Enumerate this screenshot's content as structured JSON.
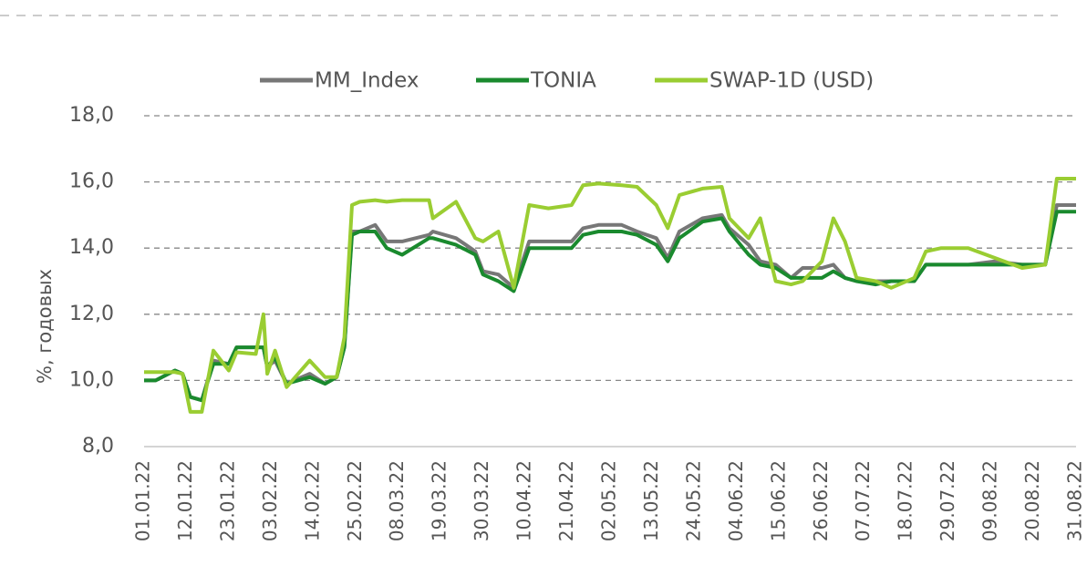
{
  "chart_data": {
    "type": "line",
    "y_label": "%, годовых",
    "x": [
      "01.01.22",
      "04.01.22",
      "09.01.22",
      "11.01.22",
      "13.01.22",
      "16.01.22",
      "19.01.22",
      "23.01.22",
      "25.01.22",
      "30.01.22",
      "01.02.22",
      "02.02.22",
      "04.02.22",
      "07.02.22",
      "13.02.22",
      "17.02.22",
      "20.02.22",
      "22.02.22",
      "24.02.22",
      "26.02.22",
      "02.03.22",
      "05.03.22",
      "09.03.22",
      "16.03.22",
      "17.03.22",
      "23.03.22",
      "28.03.22",
      "30.03.22",
      "03.04.22",
      "07.04.22",
      "11.04.22",
      "16.04.22",
      "22.04.22",
      "25.04.22",
      "29.04.22",
      "05.05.22",
      "09.05.22",
      "14.05.22",
      "17.05.22",
      "20.05.22",
      "26.05.22",
      "31.05.22",
      "02.06.22",
      "07.06.22",
      "10.06.22",
      "14.06.22",
      "18.06.22",
      "21.06.22",
      "26.06.22",
      "29.06.22",
      "02.07.22",
      "05.07.22",
      "10.07.22",
      "14.07.22",
      "20.07.22",
      "23.07.22",
      "27.07.22",
      "03.08.22",
      "10.08.22",
      "17.08.22",
      "23.08.22",
      "26.08.22",
      "31.08.22"
    ],
    "series": [
      {
        "name": "MM_Index",
        "color": "#777777",
        "values": [
          10.0,
          10.0,
          10.3,
          10.2,
          9.5,
          9.4,
          10.6,
          10.5,
          11.0,
          11.0,
          11.0,
          10.4,
          10.6,
          9.9,
          10.2,
          9.9,
          10.1,
          11.0,
          14.5,
          14.5,
          14.7,
          14.2,
          14.2,
          14.4,
          14.5,
          14.3,
          13.9,
          13.3,
          13.2,
          12.8,
          14.2,
          14.2,
          14.2,
          14.6,
          14.7,
          14.7,
          14.5,
          14.3,
          13.7,
          14.5,
          14.9,
          15.0,
          14.6,
          14.1,
          13.6,
          13.5,
          13.1,
          13.4,
          13.4,
          13.5,
          13.1,
          13.0,
          13.0,
          13.0,
          13.0,
          13.5,
          13.5,
          13.5,
          13.6,
          13.5,
          13.5,
          15.3,
          15.3
        ]
      },
      {
        "name": "TONIA",
        "color": "#1a8a2e",
        "values": [
          10.0,
          10.0,
          10.3,
          10.2,
          9.5,
          9.4,
          10.5,
          10.5,
          11.0,
          11.0,
          11.0,
          10.4,
          10.7,
          9.9,
          10.1,
          9.9,
          10.1,
          11.0,
          14.4,
          14.5,
          14.5,
          14.0,
          13.8,
          14.3,
          14.3,
          14.1,
          13.8,
          13.2,
          13.0,
          12.7,
          14.0,
          14.0,
          14.0,
          14.4,
          14.5,
          14.5,
          14.4,
          14.1,
          13.6,
          14.3,
          14.8,
          14.9,
          14.5,
          13.8,
          13.5,
          13.4,
          13.1,
          13.1,
          13.1,
          13.3,
          13.1,
          13.0,
          12.9,
          13.0,
          13.0,
          13.5,
          13.5,
          13.5,
          13.5,
          13.5,
          13.5,
          15.1,
          15.1
        ]
      },
      {
        "name": "SWAP-1D (USD)",
        "color": "#9acd32",
        "values": [
          10.25,
          10.25,
          10.25,
          10.2,
          9.05,
          9.05,
          10.9,
          10.3,
          10.85,
          10.8,
          12.0,
          10.2,
          10.9,
          9.8,
          10.6,
          10.1,
          10.1,
          11.3,
          15.3,
          15.4,
          15.45,
          15.4,
          15.45,
          15.45,
          14.9,
          15.4,
          14.3,
          14.2,
          14.5,
          12.8,
          15.3,
          15.2,
          15.3,
          15.9,
          15.95,
          15.9,
          15.85,
          15.3,
          14.6,
          15.6,
          15.8,
          15.85,
          14.9,
          14.3,
          14.9,
          13.0,
          12.9,
          13.0,
          13.6,
          14.9,
          14.2,
          13.1,
          13.0,
          12.8,
          13.1,
          13.9,
          14.0,
          14.0,
          13.7,
          13.4,
          13.5,
          16.1,
          16.1
        ]
      }
    ],
    "xlim": [
      "01.01.22",
      "31.08.22"
    ],
    "xticks": [
      "01.01.22",
      "12.01.22",
      "23.01.22",
      "03.02.22",
      "14.02.22",
      "25.02.22",
      "08.03.22",
      "19.03.22",
      "30.03.22",
      "10.04.22",
      "21.04.22",
      "02.05.22",
      "13.05.22",
      "24.05.22",
      "04.06.22",
      "15.06.22",
      "26.06.22",
      "07.07.22",
      "18.07.22",
      "29.07.22",
      "09.08.22",
      "20.08.22",
      "31.08.22"
    ],
    "ylim": [
      8,
      18
    ],
    "yticks": [
      {
        "value": 8,
        "label": "8,0"
      },
      {
        "value": 10,
        "label": "10,0"
      },
      {
        "value": 12,
        "label": "12,0"
      },
      {
        "value": 14,
        "label": "14,0"
      },
      {
        "value": 16,
        "label": "16,0"
      },
      {
        "value": 18,
        "label": "18,0"
      }
    ],
    "grid": true,
    "legend": "top"
  }
}
